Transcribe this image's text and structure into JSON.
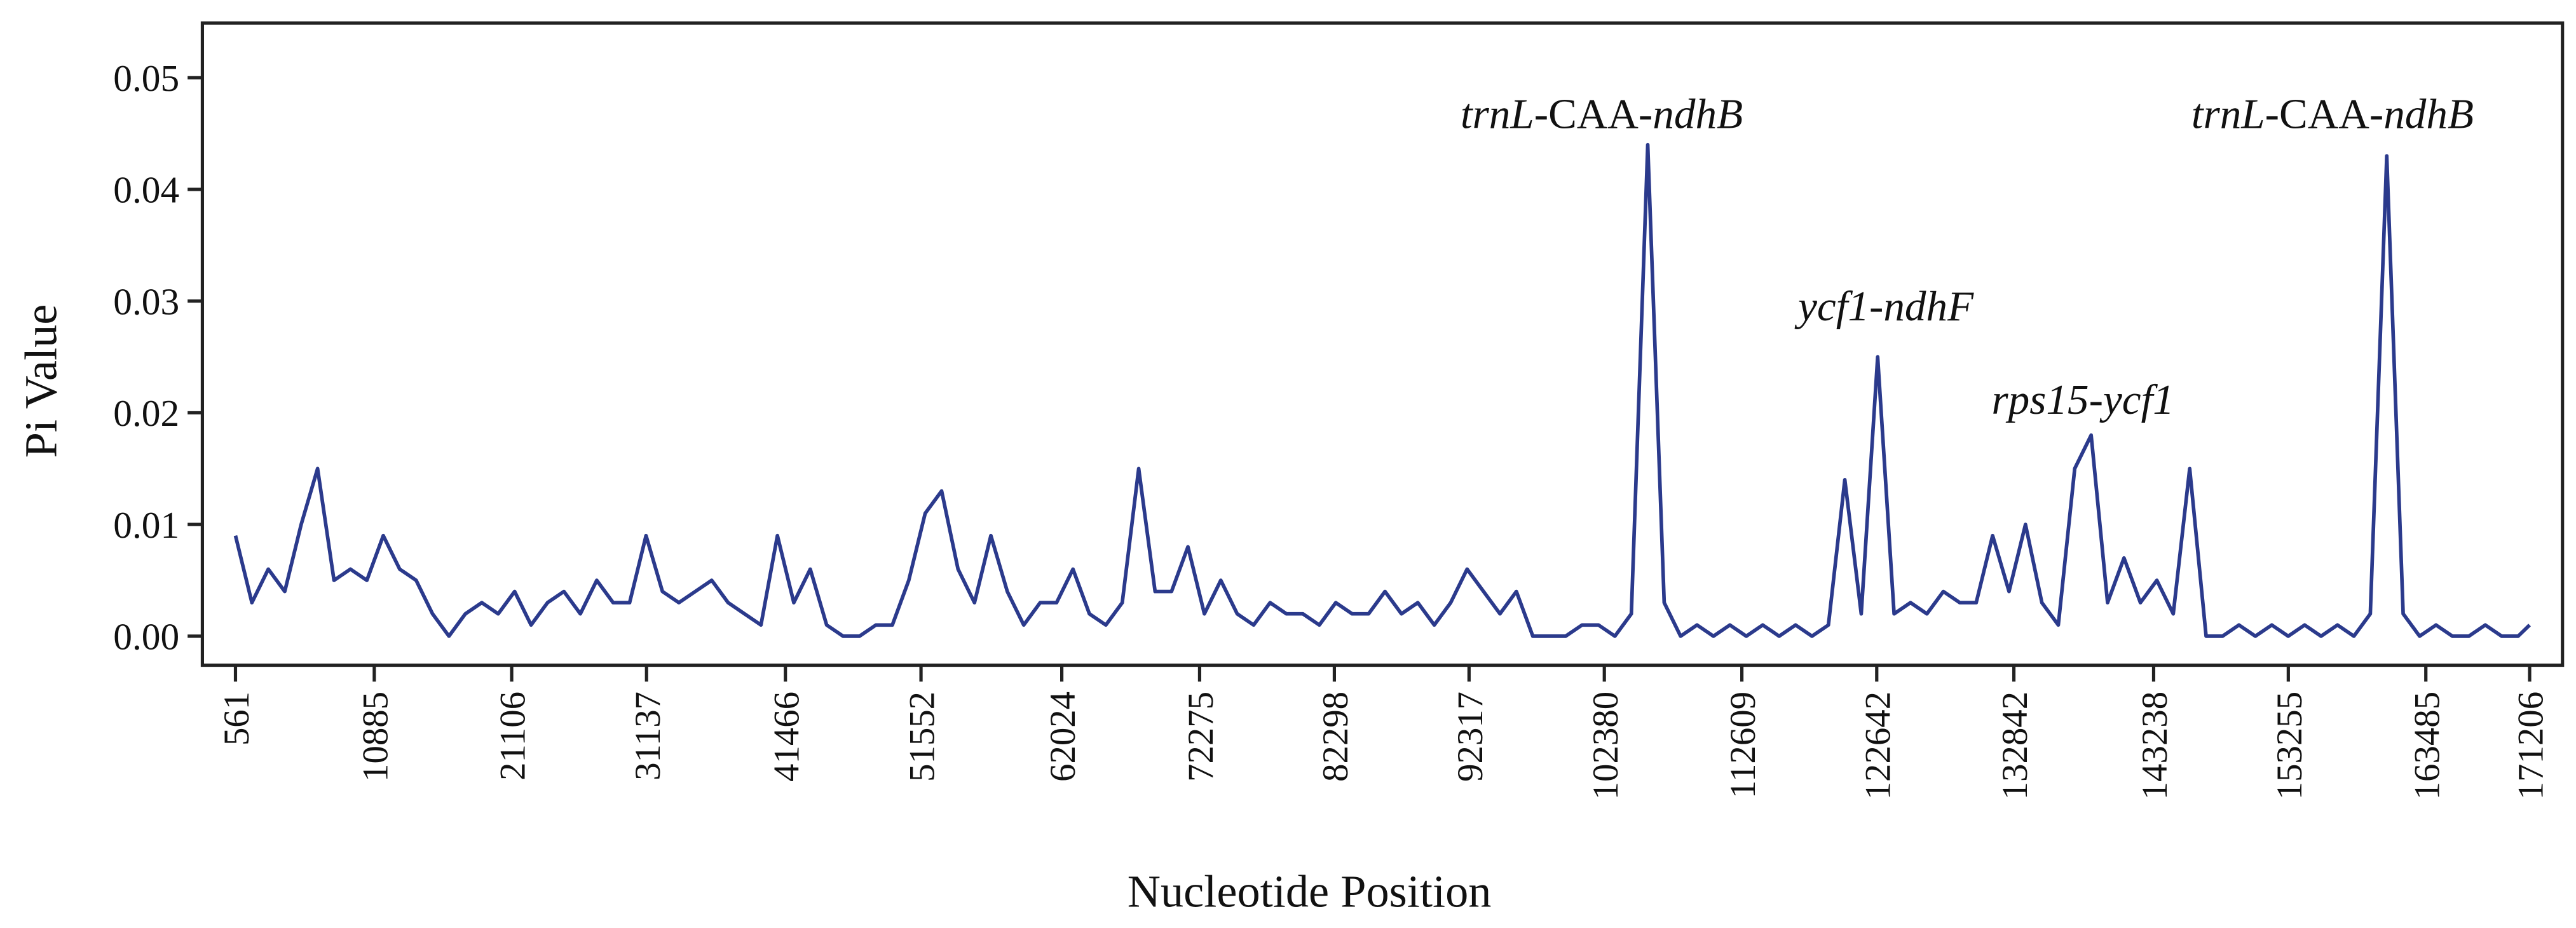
{
  "chart_data": {
    "type": "line",
    "x_label": "Nucleotide Position",
    "y_label": "Pi Value",
    "xlim": [
      -1900,
      173650
    ],
    "ylim": [
      -0.0026,
      0.0549
    ],
    "xticks": [
      561,
      10885,
      21106,
      31137,
      41466,
      51552,
      62024,
      72275,
      82298,
      92317,
      102380,
      112609,
      122642,
      132842,
      143238,
      153255,
      163485,
      171206
    ],
    "yticks": [
      {
        "value": 0,
        "label": "0.00"
      },
      0.01,
      0.02,
      0.03,
      0.04,
      0.05
    ],
    "series": [
      {
        "color": "#2b3a8c",
        "x": [
          561,
          1783,
          3004,
          4226,
          5447,
          6669,
          7890,
          9112,
          10333,
          11555,
          12776,
          13998,
          15219,
          16441,
          17662,
          18884,
          20105,
          21327,
          22548,
          23770,
          24991,
          26213,
          27434,
          28656,
          29877,
          31099,
          32320,
          33542,
          34763,
          35985,
          37206,
          38428,
          39649,
          40871,
          42092,
          43314,
          44535,
          45757,
          46978,
          48200,
          49421,
          50643,
          51864,
          53086,
          54307,
          55529,
          56750,
          57972,
          59193,
          60415,
          61636,
          62858,
          64079,
          65301,
          66522,
          67744,
          68965,
          70187,
          71408,
          72630,
          73851,
          75073,
          76294,
          77516,
          78737,
          79959,
          81180,
          82402,
          83623,
          84845,
          86066,
          87288,
          88509,
          89731,
          90952,
          92174,
          93395,
          94617,
          95838,
          97060,
          98281,
          99503,
          100724,
          101946,
          103167,
          104389,
          105610,
          106832,
          108053,
          109275,
          110496,
          111718,
          112939,
          114161,
          115382,
          116604,
          117825,
          119047,
          120268,
          121490,
          122711,
          123933,
          125154,
          126376,
          127597,
          128819,
          130040,
          131262,
          132483,
          133705,
          134926,
          136148,
          137369,
          138591,
          139812,
          141034,
          142255,
          143477,
          144698,
          145920,
          147141,
          148363,
          149584,
          150806,
          152027,
          153249,
          154470,
          155692,
          156913,
          158135,
          159356,
          160578,
          161799,
          163021,
          164242,
          165464,
          166685,
          167907,
          169128,
          170350,
          171206
        ],
        "values": [
          0.009,
          0.003,
          0.006,
          0.004,
          0.01,
          0.015,
          0.005,
          0.006,
          0.005,
          0.009,
          0.006,
          0.005,
          0.002,
          0.0,
          0.002,
          0.003,
          0.002,
          0.004,
          0.001,
          0.003,
          0.004,
          0.002,
          0.005,
          0.003,
          0.003,
          0.009,
          0.004,
          0.003,
          0.004,
          0.005,
          0.003,
          0.002,
          0.001,
          0.009,
          0.003,
          0.006,
          0.001,
          0.0,
          0.0,
          0.001,
          0.001,
          0.005,
          0.011,
          0.013,
          0.006,
          0.003,
          0.009,
          0.004,
          0.001,
          0.003,
          0.003,
          0.006,
          0.002,
          0.001,
          0.003,
          0.015,
          0.004,
          0.004,
          0.008,
          0.002,
          0.005,
          0.002,
          0.001,
          0.003,
          0.002,
          0.002,
          0.001,
          0.003,
          0.002,
          0.002,
          0.004,
          0.002,
          0.003,
          0.001,
          0.003,
          0.006,
          0.004,
          0.002,
          0.004,
          0.0,
          0.0,
          0.0,
          0.001,
          0.001,
          0.0,
          0.002,
          0.044,
          0.003,
          0.0,
          0.001,
          0.0,
          0.001,
          0.0,
          0.001,
          0.0,
          0.001,
          0.0,
          0.001,
          0.014,
          0.002,
          0.025,
          0.002,
          0.003,
          0.002,
          0.004,
          0.003,
          0.003,
          0.009,
          0.004,
          0.01,
          0.003,
          0.001,
          0.015,
          0.018,
          0.003,
          0.007,
          0.003,
          0.005,
          0.002,
          0.015,
          0.0,
          0.0,
          0.001,
          0.0,
          0.001,
          0.0,
          0.001,
          0.0,
          0.001,
          0.0,
          0.002,
          0.043,
          0.002,
          0.0,
          0.001,
          0.0,
          0.0,
          0.001,
          0.0,
          0.0,
          0.001
        ]
      }
    ],
    "annotations": [
      {
        "parts": [
          {
            "text": "trnL",
            "italic": true
          },
          {
            "text": "-CAA-",
            "italic": false
          },
          {
            "text": "ndhB",
            "italic": true
          }
        ]
      },
      {
        "parts": [
          {
            "text": "ycf1-ndhF",
            "italic": true
          }
        ]
      },
      {
        "parts": [
          {
            "text": "rps15-ycf1",
            "italic": true
          }
        ]
      },
      {
        "parts": [
          {
            "text": "trnL",
            "italic": true
          },
          {
            "text": "-CAA-",
            "italic": false
          },
          {
            "text": "ndhB",
            "italic": true
          }
        ]
      }
    ]
  }
}
